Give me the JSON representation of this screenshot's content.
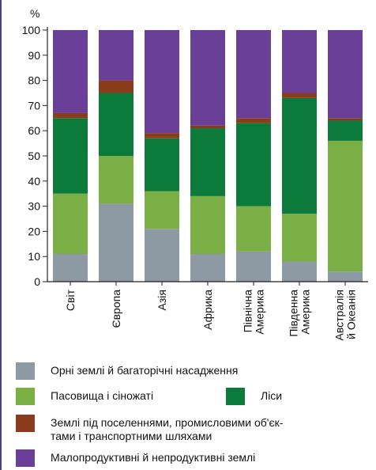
{
  "chart_data": {
    "type": "bar",
    "stacked": true,
    "y_unit": "%",
    "ylim": [
      0,
      100
    ],
    "y_ticks": [
      0,
      10,
      20,
      30,
      40,
      50,
      60,
      70,
      80,
      90,
      100
    ],
    "categories": [
      "Світ",
      "Європа",
      "Азія",
      "Африка",
      "Північна Америка",
      "Південна Америка",
      "Австралія й Океанія"
    ],
    "category_lines": [
      [
        "Світ"
      ],
      [
        "Європа"
      ],
      [
        "Азія"
      ],
      [
        "Африка"
      ],
      [
        "Північна",
        "Америка"
      ],
      [
        "Південна",
        "Америка"
      ],
      [
        "Австралія",
        "й Океанія"
      ]
    ],
    "series": [
      {
        "name": "Орні землі й багаторічні насадження",
        "color": "#8e9aa3",
        "values": [
          11,
          31,
          21,
          11,
          12,
          8,
          4
        ]
      },
      {
        "name": "Пасовища і сіножаті",
        "color": "#7aaf46",
        "values": [
          24,
          19,
          15,
          23,
          18,
          19,
          52
        ]
      },
      {
        "name": "Ліси",
        "color": "#0c7a3b",
        "values": [
          30,
          25,
          21,
          27,
          33,
          46,
          8
        ]
      },
      {
        "name": "Землі під поселеннями, промисловими об'єктами і транспортними шляхами",
        "color": "#8a3d1c",
        "values": [
          2,
          5,
          2,
          1,
          2,
          2,
          1
        ]
      },
      {
        "name": "Малопродуктивні й непродуктивні землі",
        "color": "#6a3f98",
        "values": [
          33,
          20,
          41,
          38,
          35,
          25,
          35
        ]
      }
    ]
  },
  "legend": [
    {
      "label": "Орні землі й багаторічні насадження",
      "color": "#8e9aa3"
    },
    {
      "label": "Пасовища і сіножаті",
      "color": "#7aaf46"
    },
    {
      "label": "Ліси",
      "color": "#0c7a3b"
    },
    {
      "label": "Землі під поселеннями, промисловими об'єк-\nтами і транспортними шляхами",
      "color": "#8a3d1c"
    },
    {
      "label": "Малопродуктивні й непродуктивні землі",
      "color": "#6a3f98"
    }
  ]
}
